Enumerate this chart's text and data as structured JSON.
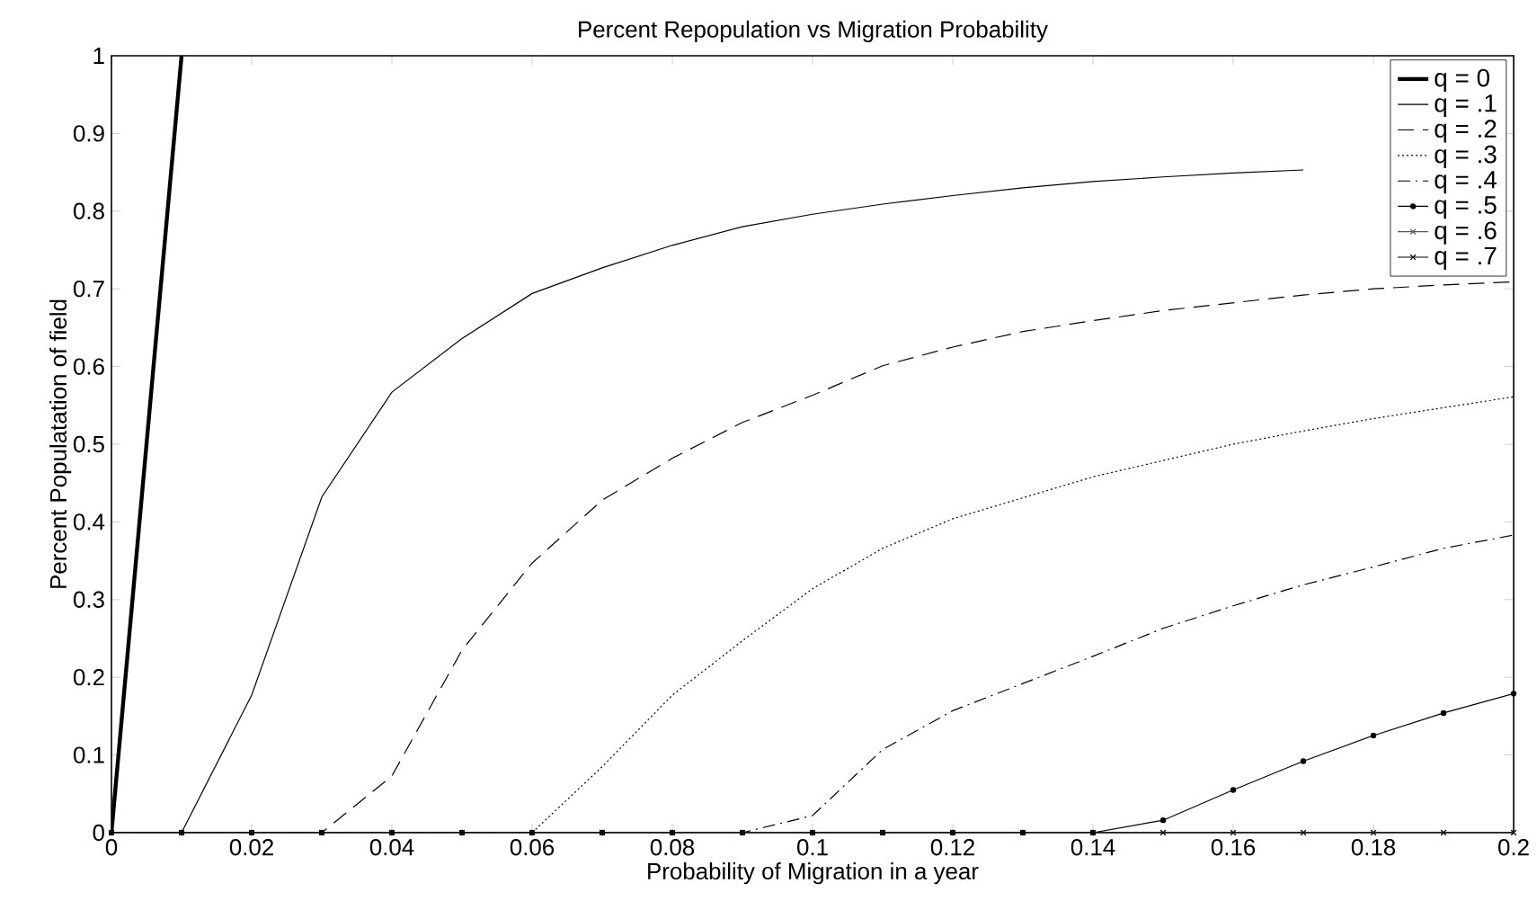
{
  "chart_data": {
    "type": "line",
    "title": "Percent Repopulation vs Migration Probability",
    "xlabel": "Probability of Migration in a year",
    "ylabel": "Percent Populatation of field",
    "xlim": [
      0,
      0.2
    ],
    "ylim": [
      0,
      1
    ],
    "xticks": [
      0,
      0.02,
      0.04,
      0.06,
      0.08,
      0.1,
      0.12,
      0.14,
      0.16,
      0.18,
      0.2
    ],
    "yticks": [
      0,
      0.1,
      0.2,
      0.3,
      0.4,
      0.5,
      0.6,
      0.7,
      0.8,
      0.9,
      1
    ],
    "legend": "top right",
    "grid": false,
    "x": [
      0,
      0.01,
      0.02,
      0.03,
      0.04,
      0.05,
      0.06,
      0.07,
      0.08,
      0.09,
      0.1,
      0.11,
      0.12,
      0.13,
      0.14,
      0.15,
      0.16,
      0.17,
      0.18,
      0.19,
      0.2
    ],
    "series": [
      {
        "name": "q = 0",
        "color": "#000000",
        "line_style": "solid",
        "marker": "none",
        "x": [
          0,
          0.01
        ],
        "values": [
          0,
          1
        ]
      },
      {
        "name": "q = .1",
        "color": "#000000",
        "line_style": "solid",
        "marker": "none",
        "values": [
          0,
          0,
          0.177,
          0.432,
          0.567,
          0.636,
          0.694,
          0.727,
          0.756,
          0.78,
          0.796,
          0.809,
          0.82,
          0.83,
          0.838,
          0.844,
          0.849,
          0.853,
          null,
          null,
          null
        ]
      },
      {
        "name": "q = .2",
        "color": "#000000",
        "line_style": "dashed",
        "marker": "none",
        "values": [
          0,
          0,
          0,
          0,
          0.073,
          0.235,
          0.347,
          0.428,
          0.482,
          0.528,
          0.563,
          0.601,
          0.625,
          0.645,
          0.659,
          0.672,
          0.682,
          0.692,
          0.7,
          0.705,
          0.709
        ]
      },
      {
        "name": "q = .3",
        "color": "#000000",
        "line_style": "dotted",
        "marker": "none",
        "values": [
          0,
          0,
          0,
          0,
          0,
          0,
          0,
          0.085,
          0.177,
          0.247,
          0.314,
          0.366,
          0.404,
          0.431,
          0.458,
          0.479,
          0.5,
          0.517,
          0.533,
          0.547,
          0.561
        ]
      },
      {
        "name": "q = .4",
        "color": "#000000",
        "line_style": "dashdot",
        "marker": "none",
        "values": [
          0,
          0,
          0,
          0,
          0,
          0,
          0,
          0,
          0,
          0,
          0.022,
          0.107,
          0.157,
          0.192,
          0.227,
          0.263,
          0.292,
          0.319,
          0.342,
          0.366,
          0.383
        ]
      },
      {
        "name": "q = .5",
        "color": "#000000",
        "line_style": "solid",
        "marker": "circle",
        "values": [
          0,
          0,
          0,
          0,
          0,
          0,
          0,
          0,
          0,
          0,
          0,
          0,
          0,
          0,
          0,
          0.016,
          0.055,
          0.092,
          0.125,
          0.154,
          0.179
        ]
      },
      {
        "name": "q = .6",
        "color": "#555555",
        "line_style": "solid",
        "marker": "cross",
        "values": [
          0,
          0,
          0,
          0,
          0,
          0,
          0,
          0,
          0,
          0,
          0,
          0,
          0,
          0,
          0,
          0,
          0,
          0,
          0,
          0,
          0
        ]
      },
      {
        "name": "q = .7",
        "color": "#000000",
        "line_style": "solid",
        "marker": "cross",
        "values": [
          0,
          0,
          0,
          0,
          0,
          0,
          0,
          0,
          0,
          0,
          0,
          0,
          0,
          0,
          0,
          0,
          0,
          0,
          0,
          0,
          0
        ]
      }
    ]
  }
}
